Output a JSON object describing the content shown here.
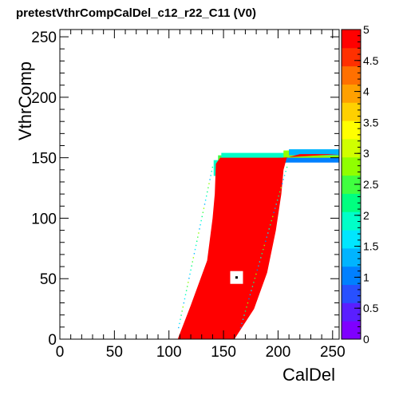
{
  "chart_data": {
    "type": "heatmap",
    "title": "pretestVthrCompCalDel_c12_r22_C11 (V0)",
    "xlabel": "CalDel",
    "ylabel": "VthrComp",
    "xlim": [
      0,
      256
    ],
    "ylim": [
      0,
      256
    ],
    "zlim": [
      0,
      5
    ],
    "x_ticks": [
      "0",
      "50",
      "100",
      "150",
      "200",
      "250"
    ],
    "y_ticks": [
      "0",
      "50",
      "100",
      "150",
      "200",
      "250"
    ],
    "z_ticks": [
      "0",
      "0.5",
      "1",
      "1.5",
      "2",
      "2.5",
      "3",
      "3.5",
      "4",
      "4.5",
      "5"
    ],
    "grid": false,
    "palette_colors": [
      "#7f00ff",
      "#5a1fff",
      "#2850ff",
      "#0080ff",
      "#00b4ff",
      "#00e6ff",
      "#00ffc8",
      "#00ff80",
      "#40ff40",
      "#90ff00",
      "#d0ff00",
      "#ffff00",
      "#ffd000",
      "#ffa000",
      "#ff7000",
      "#ff3000",
      "#ff0000"
    ],
    "main_color": "#ff0000",
    "region": {
      "description_value": 5,
      "left_edge": [
        [
          108,
          0
        ],
        [
          120,
          28
        ],
        [
          135,
          65
        ],
        [
          140,
          100
        ],
        [
          142,
          120
        ],
        [
          143,
          145
        ]
      ],
      "right_edge": [
        [
          160,
          0
        ],
        [
          178,
          25
        ],
        [
          190,
          55
        ],
        [
          198,
          90
        ],
        [
          203,
          120
        ],
        [
          205,
          140
        ],
        [
          208,
          150
        ],
        [
          220,
          153
        ],
        [
          256,
          153
        ]
      ],
      "top_edge_y": 150
    },
    "marker": {
      "x": 162,
      "y": 51
    }
  }
}
